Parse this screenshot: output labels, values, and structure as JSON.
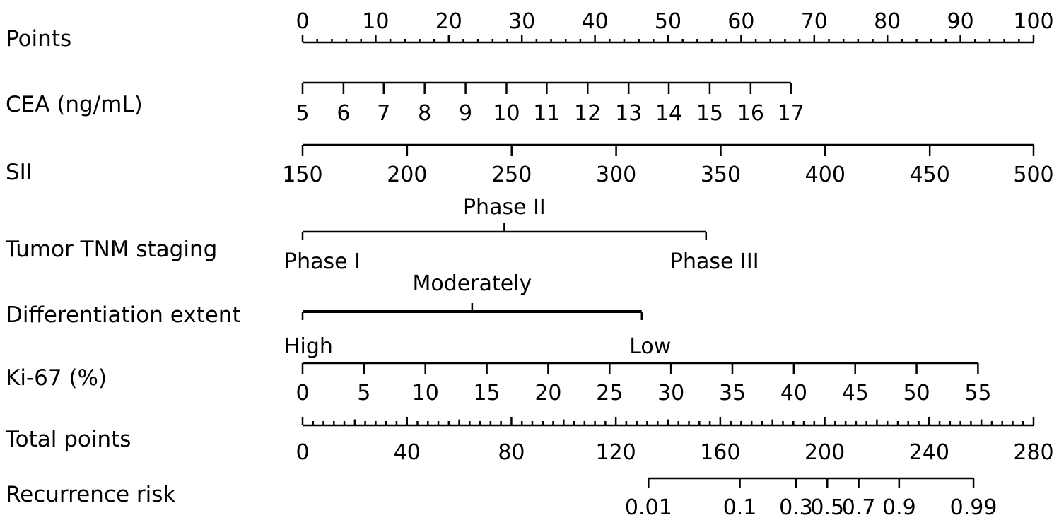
{
  "chart_data": {
    "type": "nomogram",
    "title": "",
    "rows": [
      {
        "name": "Points",
        "kind": "linear",
        "min": 0,
        "max": 100,
        "labeled_ticks": [
          "0",
          "10",
          "20",
          "30",
          "40",
          "50",
          "60",
          "70",
          "80",
          "90",
          "100"
        ],
        "labeled_values": [
          0,
          10,
          20,
          30,
          40,
          50,
          60,
          70,
          80,
          90,
          100
        ],
        "minor_step": 2,
        "label_position": "above"
      },
      {
        "name": "CEA (ng/mL)",
        "kind": "points-mapped",
        "labeled_ticks": [
          "5",
          "6",
          "7",
          "8",
          "9",
          "10",
          "11",
          "12",
          "13",
          "14",
          "15",
          "16",
          "17"
        ],
        "labeled_values": [
          5,
          6,
          7,
          8,
          9,
          10,
          11,
          12,
          13,
          14,
          15,
          16,
          17
        ],
        "points": [
          0,
          5.6,
          11.1,
          16.7,
          22.3,
          27.9,
          33.4,
          39.0,
          44.6,
          50.1,
          55.7,
          61.3,
          66.8
        ],
        "label_position": "below"
      },
      {
        "name": "SII",
        "kind": "points-mapped",
        "labeled_ticks": [
          "150",
          "200",
          "250",
          "300",
          "350",
          "400",
          "450",
          "500"
        ],
        "labeled_values": [
          150,
          200,
          250,
          300,
          350,
          400,
          450,
          500
        ],
        "points": [
          0,
          14.3,
          28.6,
          42.9,
          57.2,
          71.5,
          85.8,
          100
        ],
        "label_position": "below"
      },
      {
        "name": "Tumor TNM staging",
        "kind": "categorical",
        "categories": [
          "Phase I",
          "Phase II",
          "Phase III"
        ],
        "points": [
          0,
          27.6,
          55.2
        ],
        "category_label_positions": [
          "below",
          "above",
          "below"
        ]
      },
      {
        "name": "Differentiation extent",
        "kind": "categorical",
        "categories": [
          "High",
          "Moderately",
          "Low"
        ],
        "points": [
          0,
          23.2,
          46.4
        ],
        "category_label_positions": [
          "below",
          "above",
          "below"
        ]
      },
      {
        "name": "Ki-67 (%)",
        "kind": "points-mapped",
        "labeled_ticks": [
          "0",
          "5",
          "10",
          "15",
          "20",
          "25",
          "30",
          "35",
          "40",
          "45",
          "50",
          "55"
        ],
        "labeled_values": [
          0,
          5,
          10,
          15,
          20,
          25,
          30,
          35,
          40,
          45,
          50,
          55
        ],
        "points": [
          0,
          8.4,
          16.8,
          25.2,
          33.6,
          42.0,
          50.4,
          58.8,
          67.2,
          75.6,
          84.0,
          92.4
        ],
        "label_position": "below"
      },
      {
        "name": "Total points",
        "kind": "linear",
        "min": 0,
        "max": 280,
        "labeled_ticks": [
          "0",
          "40",
          "80",
          "120",
          "160",
          "200",
          "240",
          "280"
        ],
        "labeled_values": [
          0,
          40,
          80,
          120,
          160,
          200,
          240,
          280
        ],
        "minor_step": 4,
        "label_position": "below"
      },
      {
        "name": "Recurrence risk",
        "kind": "total-mapped",
        "labeled_ticks": [
          "0.01",
          "0.1",
          "0.3",
          "0.5",
          "0.7",
          "0.9",
          "0.99"
        ],
        "labeled_values": [
          0.01,
          0.1,
          0.3,
          0.5,
          0.7,
          0.9,
          0.99
        ],
        "total_points": [
          132.5,
          167.5,
          189,
          201,
          213,
          228.5,
          257
        ],
        "label_position": "below"
      }
    ]
  }
}
